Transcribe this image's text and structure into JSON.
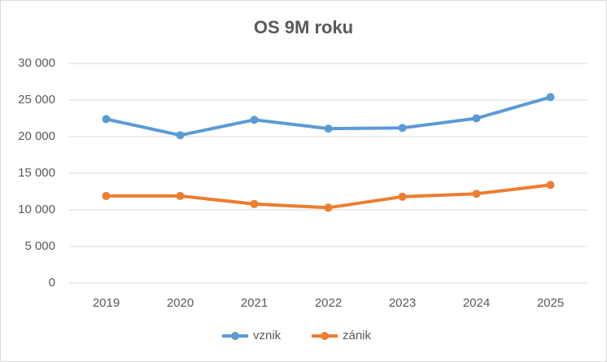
{
  "chart_data": {
    "type": "line",
    "title": "OS 9M roku",
    "categories": [
      "2019",
      "2020",
      "2021",
      "2022",
      "2023",
      "2024",
      "2025"
    ],
    "series": [
      {
        "name": "vznik",
        "color": "#5b9bd5",
        "values": [
          22400,
          20200,
          22300,
          21100,
          21200,
          22500,
          25400
        ]
      },
      {
        "name": "zánik",
        "color": "#ed7d31",
        "values": [
          11900,
          11900,
          10800,
          10300,
          11800,
          12200,
          13400
        ]
      }
    ],
    "ylim": [
      0,
      30000
    ],
    "yticks": [
      0,
      {
        "value": 5000,
        "label": "5 000"
      },
      {
        "value": 10000,
        "label": "10 000"
      },
      {
        "value": 15000,
        "label": "15 000"
      },
      {
        "value": 20000,
        "label": "20 000"
      },
      {
        "value": 25000,
        "label": "25 000"
      },
      {
        "value": 30000,
        "label": "30 000"
      }
    ],
    "grid": true,
    "legend": "bottom"
  }
}
